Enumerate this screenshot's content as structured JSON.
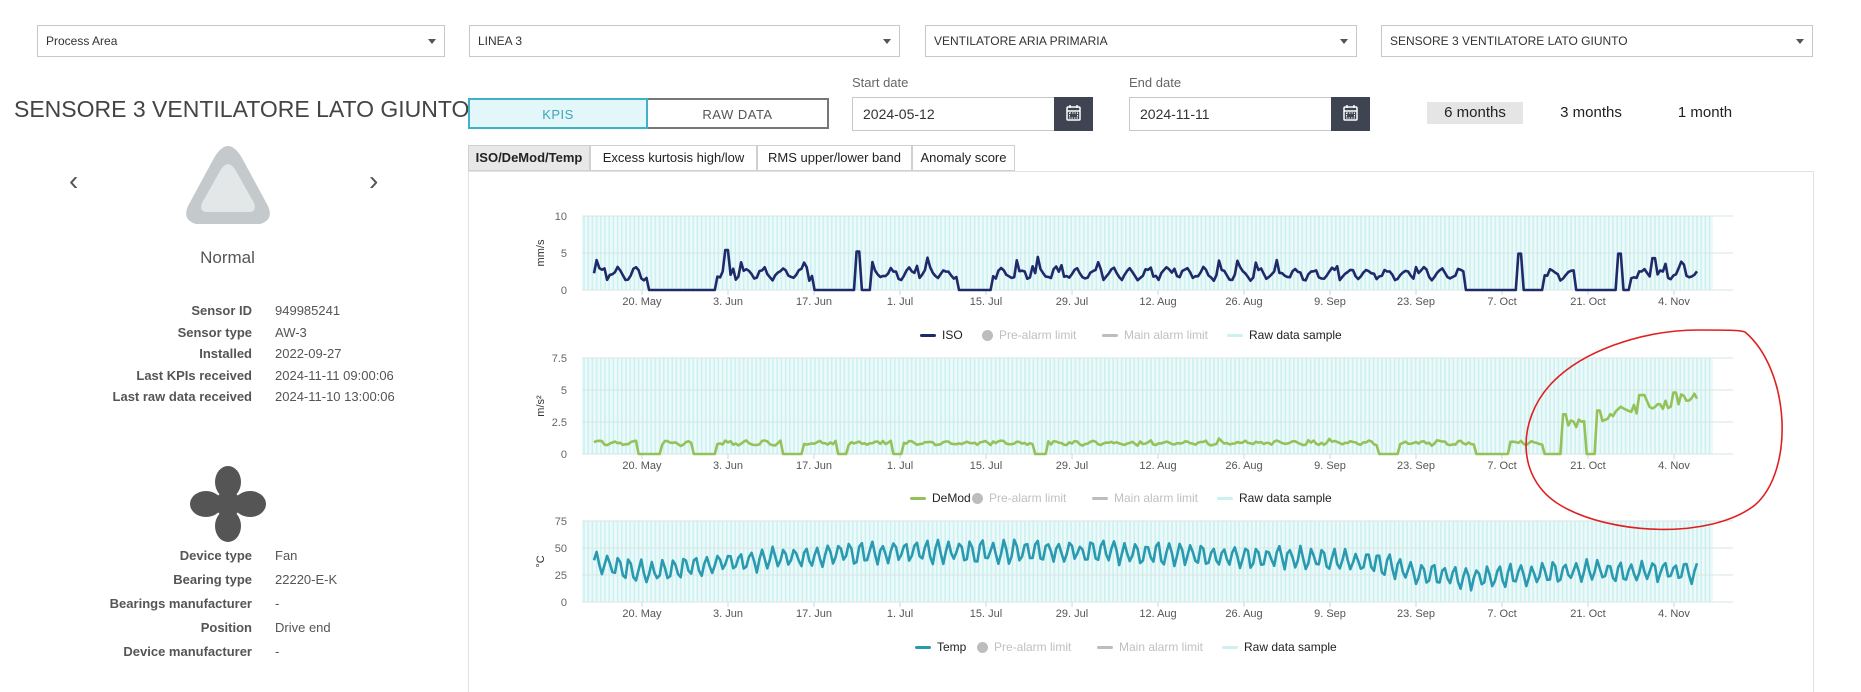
{
  "filters": [
    {
      "value": "Process Area"
    },
    {
      "value": "LINEA 3"
    },
    {
      "value": "VENTILATORE ARIA PRIMARIA"
    },
    {
      "value": "SENSORE 3 VENTILATORE LATO GIUNTO"
    }
  ],
  "sensor": {
    "title": "SENSORE 3 VENTILATORE LATO GIUNTO",
    "status": "Normal",
    "info": [
      {
        "label": "Sensor ID",
        "value": "949985241"
      },
      {
        "label": "Sensor type",
        "value": "AW-3"
      },
      {
        "label": "Installed",
        "value": "2022-09-27"
      },
      {
        "label": "Last KPIs received",
        "value": "2024-11-11 09:00:06"
      },
      {
        "label": "Last raw data received",
        "value": "2024-11-10 13:00:06"
      }
    ]
  },
  "device": {
    "info": [
      {
        "label": "Device type",
        "value": "Fan"
      },
      {
        "label": "Bearing type",
        "value": "22220-E-K"
      },
      {
        "label": "Bearings manufacturer",
        "value": "-"
      },
      {
        "label": "Position",
        "value": "Drive end"
      },
      {
        "label": "Device manufacturer",
        "value": "-"
      }
    ]
  },
  "view_toggle": {
    "kpis": "KPIS",
    "raw": "RAW DATA"
  },
  "dates": {
    "start_label": "Start date",
    "start_value": "2024-05-12",
    "end_label": "End date",
    "end_value": "2024-11-11"
  },
  "ranges": [
    "6 months",
    "3 months",
    "1 month"
  ],
  "tabs": [
    "ISO/DeMod/Temp",
    "Excess kurtosis high/low",
    "RMS upper/lower band",
    "Anomaly score"
  ],
  "colors": {
    "accent": "#3fb3c4",
    "iso": "#1f2a6b",
    "demod": "#94c25a",
    "temp": "#2a9ab0",
    "raw_sample": "#ccf1f1",
    "limit": "#bdbdbd",
    "annotation": "#e02020"
  },
  "chart_data": [
    {
      "type": "line",
      "x_ticks": [
        "20. May",
        "3. Jun",
        "17. Jun",
        "1. Jul",
        "15. Jul",
        "29. Jul",
        "12. Aug",
        "26. Aug",
        "9. Sep",
        "23. Sep",
        "7. Oct",
        "21. Oct",
        "4. Nov"
      ],
      "ylabel": "mm/s",
      "ylim": [
        0,
        10
      ],
      "y_ticks": [
        "0",
        "5",
        "10"
      ],
      "series": [
        {
          "name": "ISO",
          "color": "#1f2a6b",
          "baseline": 2.2,
          "amplitude": 1.3,
          "noise": 0.35,
          "zero_runs": [
            [
              0.05,
              0.11
            ],
            [
              0.2,
              0.25
            ],
            [
              0.33,
              0.36
            ],
            [
              0.79,
              0.84
            ],
            [
              0.79,
              0.86
            ],
            [
              0.89,
              0.94
            ]
          ],
          "spikes": [
            [
              0.12,
              5.4
            ],
            [
              0.24,
              5.2
            ],
            [
              0.84,
              4.9
            ],
            [
              0.93,
              4.9
            ],
            [
              0.96,
              4.3
            ]
          ]
        }
      ],
      "legend": [
        "ISO",
        "Pre-alarm limit",
        "Main alarm limit",
        "Raw data sample"
      ]
    },
    {
      "type": "line",
      "x_ticks": [
        "20. May",
        "3. Jun",
        "17. Jun",
        "1. Jul",
        "15. Jul",
        "29. Jul",
        "12. Aug",
        "26. Aug",
        "9. Sep",
        "23. Sep",
        "7. Oct",
        "21. Oct",
        "4. Nov"
      ],
      "ylabel": "m/s²",
      "ylim": [
        0,
        7.5
      ],
      "y_ticks": [
        "0",
        "2.5",
        "5",
        "7.5"
      ],
      "series": [
        {
          "name": "DeMod",
          "color": "#94c25a",
          "baseline": 0.85,
          "amplitude": 0.2,
          "noise": 0.12,
          "late_ramp": {
            "from": 0.87,
            "to": 1.0,
            "start": 2.2,
            "end": 4.4
          },
          "zero_runs": [
            [
              0.04,
              0.06
            ],
            [
              0.09,
              0.11
            ],
            [
              0.17,
              0.19
            ],
            [
              0.22,
              0.23
            ],
            [
              0.27,
              0.28
            ],
            [
              0.4,
              0.41
            ],
            [
              0.71,
              0.73
            ],
            [
              0.8,
              0.83
            ],
            [
              0.86,
              0.88
            ],
            [
              0.9,
              0.91
            ]
          ],
          "spikes": [
            [
              0.88,
              3.1
            ],
            [
              0.91,
              3.4
            ],
            [
              0.95,
              4.6
            ],
            [
              0.98,
              4.8
            ]
          ]
        }
      ],
      "legend": [
        "DeMod",
        "Pre-alarm limit",
        "Main alarm limit",
        "Raw data sample"
      ]
    },
    {
      "type": "line",
      "x_ticks": [
        "20. May",
        "3. Jun",
        "17. Jun",
        "1. Jul",
        "15. Jul",
        "29. Jul",
        "12. Aug",
        "26. Aug",
        "9. Sep",
        "23. Sep",
        "7. Oct",
        "21. Oct",
        "4. Nov"
      ],
      "ylabel": "°C",
      "ylim": [
        0,
        75
      ],
      "y_ticks": [
        "0",
        "25",
        "50",
        "75"
      ],
      "series": [
        {
          "name": "Temp",
          "color": "#2a9ab0",
          "baseline": 38,
          "amplitude": 9,
          "noise": 3,
          "segments": [
            [
              0.0,
              36
            ],
            [
              0.05,
              28
            ],
            [
              0.1,
              35
            ],
            [
              0.23,
              45
            ],
            [
              0.3,
              46
            ],
            [
              0.4,
              47
            ],
            [
              0.5,
              45
            ],
            [
              0.6,
              42
            ],
            [
              0.7,
              38
            ],
            [
              0.75,
              27
            ],
            [
              0.8,
              22
            ],
            [
              0.87,
              28
            ],
            [
              1.0,
              28
            ]
          ]
        }
      ],
      "legend": [
        "Temp",
        "Pre-alarm limit",
        "Main alarm limit",
        "Raw data sample"
      ]
    }
  ]
}
